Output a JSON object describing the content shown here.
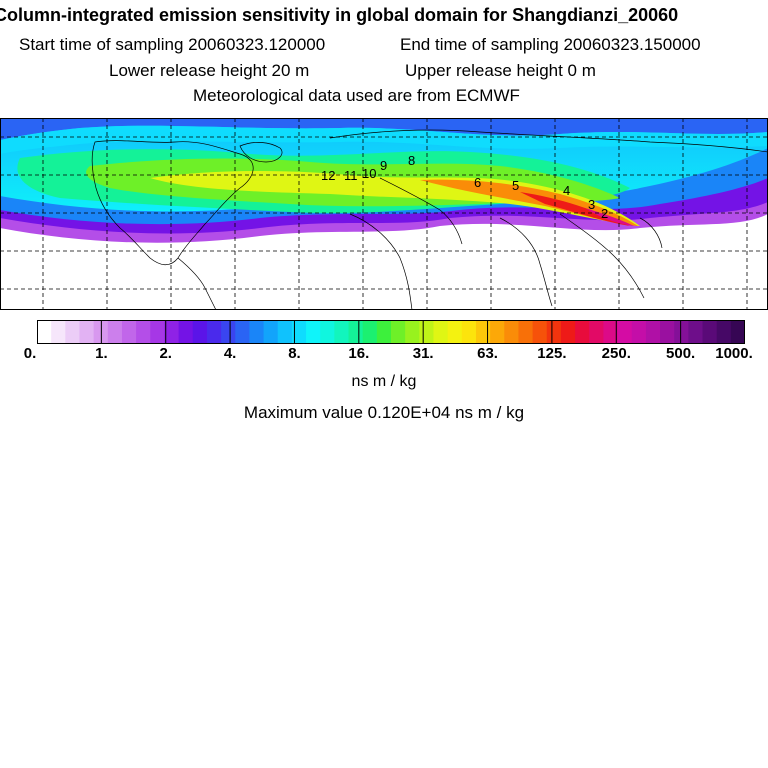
{
  "header": {
    "title": "Column-integrated emission sensitivity in global domain for Shangdianzi_20060",
    "start_sampling": "Start time of sampling 20060323.120000",
    "end_sampling": "End time of sampling 20060323.150000",
    "lower_release": "Lower release height   20 m",
    "upper_release": "Upper release height    0 m",
    "meteo": "Meteorological data used are from ECMWF"
  },
  "map": {
    "contour_labels": [
      "12",
      "11",
      "10",
      "9",
      "8",
      "6",
      "5",
      "4",
      "3",
      "2"
    ]
  },
  "legend": {
    "ticks": [
      "0.",
      "1.",
      "2.",
      "4.",
      "8.",
      "16.",
      "31.",
      "63.",
      "125.",
      "250.",
      "500.",
      "1000."
    ],
    "colors": [
      "#ffffff",
      "#f6e6fb",
      "#eccdf7",
      "#e2b2f3",
      "#d898ef",
      "#cc7fec",
      "#c166ea",
      "#b44ee8",
      "#a637e6",
      "#8f22e6",
      "#7413e6",
      "#5b14e8",
      "#4a2aec",
      "#3a45f0",
      "#2a64f4",
      "#1a85f8",
      "#12a4fb",
      "#10c2fd",
      "#0fdcfe",
      "#0ff4fa",
      "#10f6df",
      "#12f5bd",
      "#14f298",
      "#1cf070",
      "#3df03c",
      "#6ef028",
      "#98f21e",
      "#bff418",
      "#dff614",
      "#f4f210",
      "#fce40c",
      "#fcc80a",
      "#fca808",
      "#fa8c08",
      "#f87008",
      "#f6520a",
      "#f2340e",
      "#ee1a18",
      "#e80c3c",
      "#e20a66",
      "#dc0a88",
      "#d40ca4",
      "#c40ea8",
      "#b010a6",
      "#9a10a0",
      "#841098",
      "#6e0e8a",
      "#5a0a78",
      "#460866",
      "#360654"
    ],
    "unit": "ns m / kg",
    "max_value": "Maximum value  0.120E+04 ns m / kg"
  }
}
